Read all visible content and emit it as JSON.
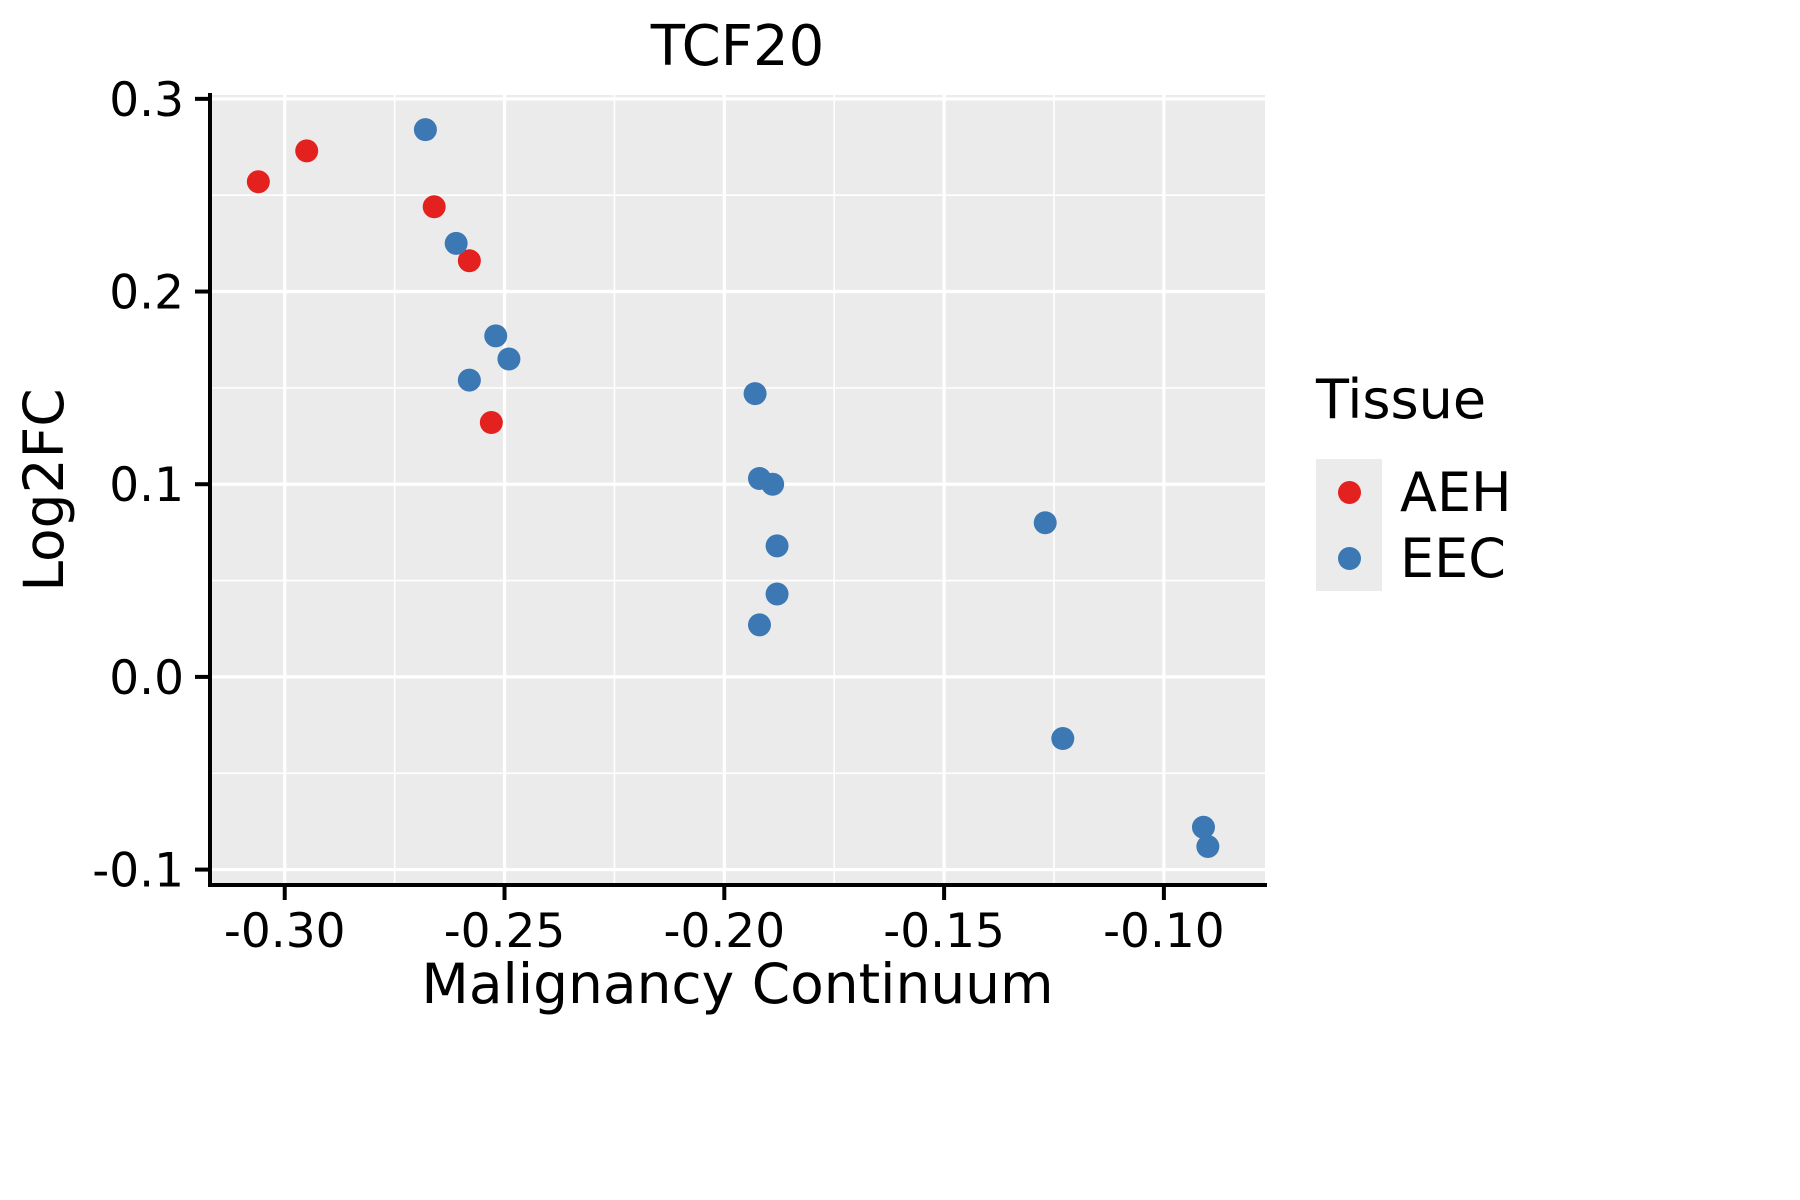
{
  "chart_data": {
    "type": "scatter",
    "title": "TCF20",
    "xlabel": "Malignancy Continuum",
    "ylabel": "Log2FC",
    "xlim": [
      -0.317,
      -0.077
    ],
    "ylim": [
      -0.108,
      0.302
    ],
    "x_ticks": [
      -0.3,
      -0.25,
      -0.2,
      -0.15,
      -0.1
    ],
    "x_tick_labels": [
      "-0.30",
      "-0.25",
      "-0.20",
      "-0.15",
      "-0.10"
    ],
    "y_ticks": [
      -0.1,
      0.0,
      0.1,
      0.2,
      0.3
    ],
    "y_tick_labels": [
      "-0.1",
      "0.0",
      "0.1",
      "0.2",
      "0.3"
    ],
    "grid": true,
    "panel_bg": "#EBEBEB",
    "grid_color": "#FFFFFF",
    "axis_color": "#000000",
    "legend": {
      "title": "Tissue",
      "position": "right"
    },
    "series": [
      {
        "name": "AEH",
        "color": "#E3211E",
        "points": [
          [
            -0.306,
            0.257
          ],
          [
            -0.295,
            0.273
          ],
          [
            -0.266,
            0.244
          ],
          [
            -0.258,
            0.216
          ],
          [
            -0.253,
            0.132
          ]
        ]
      },
      {
        "name": "EEC",
        "color": "#3C78B4",
        "points": [
          [
            -0.268,
            0.284
          ],
          [
            -0.261,
            0.225
          ],
          [
            -0.258,
            0.154
          ],
          [
            -0.252,
            0.177
          ],
          [
            -0.249,
            0.165
          ],
          [
            -0.193,
            0.147
          ],
          [
            -0.192,
            0.103
          ],
          [
            -0.189,
            0.1
          ],
          [
            -0.188,
            0.068
          ],
          [
            -0.188,
            0.043
          ],
          [
            -0.192,
            0.027
          ],
          [
            -0.127,
            0.08
          ],
          [
            -0.123,
            -0.032
          ],
          [
            -0.091,
            -0.078
          ],
          [
            -0.09,
            -0.088
          ]
        ]
      }
    ]
  }
}
